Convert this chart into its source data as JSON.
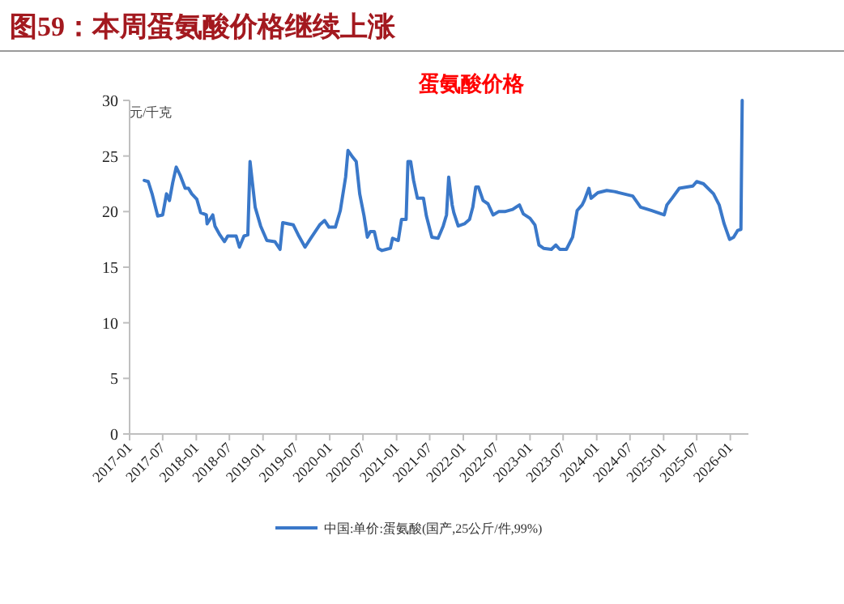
{
  "chart_data": {
    "type": "line",
    "title": "图59：本周蛋氨酸价格继续上涨",
    "subtitle": "蛋氨酸价格",
    "ylabel": "元/千克",
    "x": [
      "2017-03-22",
      "2017-04-13",
      "2017-05-04",
      "2017-06-04",
      "2017-07-01",
      "2017-07-22",
      "2017-08-07",
      "2017-08-25",
      "2017-09-13",
      "2017-10-04",
      "2017-11-01",
      "2017-11-19",
      "2017-12-07",
      "2018-01-04",
      "2018-01-25",
      "2018-02-25",
      "2018-03-01",
      "2018-04-01",
      "2018-04-13",
      "2018-05-10",
      "2018-06-04",
      "2018-06-22",
      "2018-08-07",
      "2018-08-25",
      "2018-09-19",
      "2018-10-10",
      "2018-10-22",
      "2018-11-04",
      "2018-11-19",
      "2018-12-19",
      "2019-01-22",
      "2019-03-07",
      "2019-04-04",
      "2019-04-19",
      "2019-06-16",
      "2019-07-13",
      "2019-08-19",
      "2019-09-19",
      "2019-11-07",
      "2019-12-04",
      "2019-12-28",
      "2020-02-01",
      "2020-02-28",
      "2020-03-28",
      "2020-04-10",
      "2020-05-01",
      "2020-05-25",
      "2020-06-13",
      "2020-07-07",
      "2020-07-25",
      "2020-08-10",
      "2020-09-01",
      "2020-09-22",
      "2020-10-13",
      "2020-11-04",
      "2020-11-28",
      "2020-12-10",
      "2021-01-10",
      "2021-01-28",
      "2021-02-22",
      "2021-03-04",
      "2021-03-19",
      "2021-04-04",
      "2021-04-25",
      "2021-05-28",
      "2021-06-13",
      "2021-07-13",
      "2021-08-16",
      "2021-09-13",
      "2021-10-01",
      "2021-10-13",
      "2021-11-01",
      "2021-11-10",
      "2021-12-04",
      "2022-01-07",
      "2022-02-04",
      "2022-02-22",
      "2022-03-10",
      "2022-03-25",
      "2022-04-19",
      "2022-05-16",
      "2022-06-13",
      "2022-07-13",
      "2022-08-16",
      "2022-09-28",
      "2022-11-04",
      "2022-11-25",
      "2023-01-01",
      "2023-01-28",
      "2023-02-19",
      "2023-03-16",
      "2023-04-28",
      "2023-05-22",
      "2023-06-13",
      "2023-07-19",
      "2023-08-22",
      "2023-09-16",
      "2023-10-13",
      "2023-10-25",
      "2023-11-19",
      "2023-12-01",
      "2024-01-07",
      "2024-02-25",
      "2024-04-07",
      "2024-07-16",
      "2024-08-28",
      "2024-10-25",
      "2025-01-04",
      "2025-01-19",
      "2025-02-16",
      "2025-03-28",
      "2025-06-10",
      "2025-07-01",
      "2025-08-07",
      "2025-10-01",
      "2025-11-01",
      "2025-11-28",
      "2025-12-28",
      "2026-01-19",
      "2026-02-10",
      "2026-02-28",
      "2026-03-07"
    ],
    "series": [
      {
        "name": "中国:单价:蛋氨酸(国产,25公斤/件,99%)",
        "color": "#3a78c9",
        "values": [
          22.8,
          22.7,
          21.6,
          19.6,
          19.7,
          21.6,
          21.0,
          22.6,
          24.0,
          23.3,
          22.1,
          22.1,
          21.6,
          21.1,
          19.9,
          19.7,
          18.9,
          19.7,
          18.7,
          17.9,
          17.3,
          17.8,
          17.8,
          16.8,
          17.8,
          17.9,
          24.5,
          22.6,
          20.4,
          18.7,
          17.4,
          17.3,
          16.6,
          19.0,
          18.8,
          17.9,
          16.8,
          17.6,
          18.8,
          19.2,
          18.6,
          18.6,
          20.1,
          23.1,
          25.5,
          25.0,
          24.5,
          21.6,
          19.6,
          17.7,
          18.2,
          18.2,
          16.7,
          16.5,
          16.6,
          16.7,
          17.6,
          17.4,
          19.3,
          19.3,
          24.5,
          24.5,
          22.8,
          21.2,
          21.2,
          19.6,
          17.7,
          17.6,
          18.7,
          19.7,
          23.1,
          20.6,
          19.9,
          18.7,
          18.9,
          19.3,
          20.4,
          22.2,
          22.2,
          21.0,
          20.7,
          19.7,
          20.0,
          20.0,
          20.2,
          20.6,
          19.8,
          19.4,
          18.8,
          17.0,
          16.7,
          16.6,
          17.0,
          16.6,
          16.6,
          17.7,
          20.1,
          20.6,
          21.0,
          22.1,
          21.2,
          21.7,
          21.9,
          21.8,
          21.4,
          20.4,
          20.1,
          19.7,
          20.6,
          21.2,
          22.1,
          22.3,
          22.7,
          22.5,
          21.6,
          20.6,
          18.9,
          17.5,
          17.7,
          18.3,
          18.4,
          30.0
        ]
      }
    ],
    "xlim": [
      "2017-01-01",
      "2026-04-10"
    ],
    "xticks": [
      "2017-01",
      "2017-07",
      "2018-01",
      "2018-07",
      "2019-01",
      "2019-07",
      "2020-01",
      "2020-07",
      "2021-01",
      "2021-07",
      "2022-01",
      "2022-07",
      "2023-01",
      "2023-07",
      "2024-01",
      "2024-07",
      "2025-01",
      "2025-07",
      "2026-01"
    ],
    "ylim": [
      0,
      30
    ],
    "yticks": [
      0,
      5,
      10,
      15,
      20,
      25,
      30
    ],
    "legend": "bottom"
  }
}
